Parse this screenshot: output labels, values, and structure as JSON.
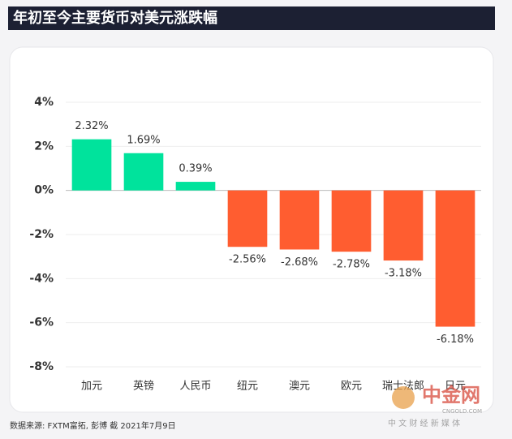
{
  "chart_data": {
    "type": "bar",
    "title": "年初至今主要货币对美元涨跌幅",
    "categories": [
      "加元",
      "英镑",
      "人民币",
      "纽元",
      "澳元",
      "欧元",
      "瑞士法郎",
      "日元"
    ],
    "values": [
      2.32,
      1.69,
      0.39,
      -2.56,
      -2.68,
      -2.78,
      -3.18,
      -6.18
    ],
    "value_labels": [
      "2.32%",
      "1.69%",
      "0.39%",
      "-2.56%",
      "-2.68%",
      "-2.78%",
      "-3.18%",
      "-6.18%"
    ],
    "positive_color": "#00e39c",
    "negative_color": "#ff5d30",
    "ylim": [
      -8,
      4
    ],
    "yticks": [
      {
        "value": 4,
        "label": "4%"
      },
      {
        "value": 2,
        "label": "2%"
      },
      {
        "value": 0,
        "label": "0%"
      },
      {
        "value": -2,
        "label": "-2%"
      },
      {
        "value": -4,
        "label": "-4%"
      },
      {
        "value": -6,
        "label": "-6%"
      },
      {
        "value": -8,
        "label": "-8%"
      }
    ],
    "grid": true,
    "source": "数据来源: FXTM富拓, 彭博 截 2021年7月9日"
  },
  "watermark": {
    "brand": "中金网",
    "domain": "CNGOLD.COM",
    "slogan": "中 文 财 经 新 媒 体"
  }
}
